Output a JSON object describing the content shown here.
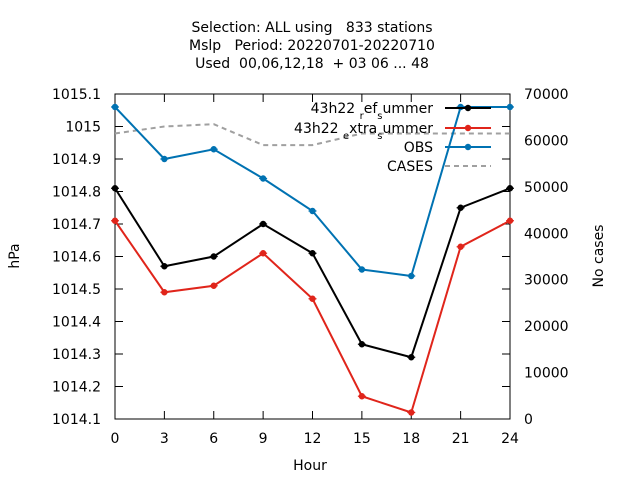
{
  "chart_data": {
    "type": "line",
    "title_lines": [
      "Selection: ALL using   833 stations",
      "Mslp   Period: 20220701-20220710",
      "Used  00,06,12,18  + 03 06 ... 48"
    ],
    "xlabel": "Hour",
    "ylabel": "hPa",
    "y2label": "No cases",
    "x": [
      0,
      3,
      6,
      9,
      12,
      15,
      18,
      21,
      24
    ],
    "xlim": [
      0,
      24
    ],
    "ylim": [
      1014.1,
      1015.1
    ],
    "y2lim": [
      0,
      70000
    ],
    "x_ticks": [
      "0",
      "3",
      "6",
      "9",
      "12",
      "15",
      "18",
      "21",
      "24"
    ],
    "y_ticks": [
      "1014.1",
      "1014.2",
      "1014.3",
      "1014.4",
      "1014.5",
      "1014.6",
      "1014.7",
      "1014.8",
      "1014.9",
      "1015",
      "1015.1"
    ],
    "y2_ticks": [
      "0",
      "10000",
      "20000",
      "30000",
      "40000",
      "50000",
      "60000",
      "70000"
    ],
    "legend_position": "top-right",
    "grid": false,
    "series": [
      {
        "name": "43h22_ref_summer",
        "label_parts": [
          [
            "43h22 ",
            ""
          ],
          [
            "r",
            "sub"
          ],
          [
            "ef",
            ""
          ],
          [
            "s",
            "sub"
          ],
          [
            "ummer",
            ""
          ]
        ],
        "color": "#000000",
        "axis": "y1",
        "dash": false,
        "marker": true,
        "values": [
          1014.81,
          1014.57,
          1014.6,
          1014.7,
          1014.61,
          1014.33,
          1014.29,
          1014.75,
          1014.81
        ]
      },
      {
        "name": "43h22_extra_summer",
        "label_parts": [
          [
            "43h22 ",
            ""
          ],
          [
            "e",
            "sub"
          ],
          [
            "xtra",
            ""
          ],
          [
            "s",
            "sub"
          ],
          [
            "ummer",
            ""
          ]
        ],
        "color": "#e0251b",
        "axis": "y1",
        "dash": false,
        "marker": true,
        "values": [
          1014.71,
          1014.49,
          1014.51,
          1014.61,
          1014.47,
          1014.17,
          1014.12,
          1014.63,
          1014.71
        ]
      },
      {
        "name": "OBS",
        "label_parts": [
          [
            "OBS",
            ""
          ]
        ],
        "color": "#0072b2",
        "axis": "y1",
        "dash": false,
        "marker": true,
        "values": [
          1015.06,
          1014.9,
          1014.93,
          1014.84,
          1014.74,
          1014.56,
          1014.54,
          1015.06,
          1015.06
        ]
      },
      {
        "name": "CASES",
        "label_parts": [
          [
            "CASES",
            ""
          ]
        ],
        "color": "#a0a0a0",
        "axis": "y2",
        "dash": true,
        "marker": false,
        "values": [
          61500,
          63000,
          63500,
          59000,
          59000,
          61500,
          61500,
          61500,
          61500
        ]
      }
    ]
  }
}
